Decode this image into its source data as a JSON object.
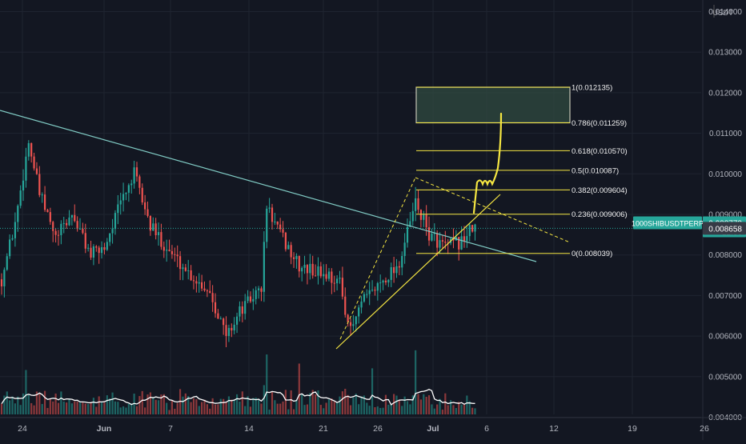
{
  "chart_data": {
    "type": "candlestick",
    "symbol": "1000SHIBUSDTPERP",
    "currency": "USDT",
    "last_price": "0.008773",
    "countdown": "12:36",
    "crosshair_price": "0.008658",
    "ylim": [
      0.0039,
      0.0141
    ],
    "y_ticks": [
      {
        "value": 0.004,
        "label": "0.004000"
      },
      {
        "value": 0.005,
        "label": "0.005000"
      },
      {
        "value": 0.006,
        "label": "0.006000"
      },
      {
        "value": 0.007,
        "label": "0.007000"
      },
      {
        "value": 0.008,
        "label": "0.008000"
      },
      {
        "value": 0.009,
        "label": "0.009000"
      },
      {
        "value": 0.01,
        "label": "0.010000"
      },
      {
        "value": 0.011,
        "label": "0.011000"
      },
      {
        "value": 0.012,
        "label": "0.012000"
      },
      {
        "value": 0.013,
        "label": "0.013000"
      },
      {
        "value": 0.014,
        "label": "0.014000"
      }
    ],
    "x_ticks": [
      {
        "label": "24",
        "bold": false
      },
      {
        "label": "Jun",
        "bold": true
      },
      {
        "label": "7",
        "bold": false
      },
      {
        "label": "14",
        "bold": false
      },
      {
        "label": "21",
        "bold": false
      },
      {
        "label": "26",
        "bold": false
      },
      {
        "label": "Jul",
        "bold": true
      },
      {
        "label": "6",
        "bold": false
      },
      {
        "label": "12",
        "bold": false
      },
      {
        "label": "19",
        "bold": false
      },
      {
        "label": "26",
        "bold": false
      }
    ],
    "price_anchors": [
      [
        0,
        0.0074
      ],
      [
        5,
        0.0088
      ],
      [
        10,
        0.0108
      ],
      [
        14,
        0.0095
      ],
      [
        20,
        0.0084
      ],
      [
        26,
        0.009
      ],
      [
        33,
        0.008
      ],
      [
        38,
        0.0082
      ],
      [
        44,
        0.0093
      ],
      [
        49,
        0.01
      ],
      [
        55,
        0.0087
      ],
      [
        62,
        0.0081
      ],
      [
        70,
        0.0075
      ],
      [
        77,
        0.0071
      ],
      [
        83,
        0.006
      ],
      [
        88,
        0.0066
      ],
      [
        96,
        0.0072
      ],
      [
        98,
        0.0092
      ],
      [
        103,
        0.0085
      ],
      [
        110,
        0.0077
      ],
      [
        116,
        0.0076
      ],
      [
        121,
        0.0075
      ],
      [
        125,
        0.0073
      ],
      [
        129,
        0.0061
      ],
      [
        133,
        0.0068
      ],
      [
        141,
        0.0074
      ],
      [
        147,
        0.0078
      ],
      [
        153,
        0.0093
      ],
      [
        158,
        0.0085
      ],
      [
        164,
        0.0082
      ],
      [
        169,
        0.0083
      ],
      [
        175,
        0.0087
      ]
    ],
    "fibonacci": [
      {
        "ratio": "1",
        "price": "0.012135",
        "value": 0.012135
      },
      {
        "ratio": "0.786",
        "price": "0.011259",
        "value": 0.011259
      },
      {
        "ratio": "0.618",
        "price": "0.010570",
        "value": 0.01057
      },
      {
        "ratio": "0.5",
        "price": "0.010087",
        "value": 0.010087
      },
      {
        "ratio": "0.382",
        "price": "0.009604",
        "value": 0.009604
      },
      {
        "ratio": "0.236",
        "price": "0.009006",
        "value": 0.009006
      },
      {
        "ratio": "0",
        "price": "0.008039",
        "value": 0.008039
      }
    ],
    "grid": true,
    "colors": {
      "background": "#131722",
      "grid": "#1f2430",
      "up": "#26a69a",
      "down": "#ef5350",
      "drawing": "#f5e642",
      "trendline": "#80cbc4",
      "price_tag": "#26a69a",
      "crosshair_tag": "#363a45",
      "axis_text": "#b2b5be",
      "volume_ma": "#ffffff"
    }
  }
}
